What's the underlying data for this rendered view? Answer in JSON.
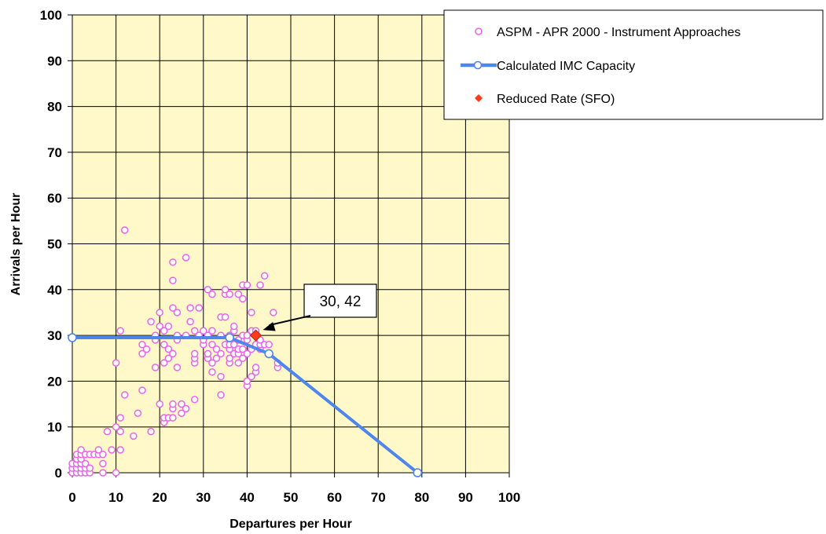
{
  "chart_data": {
    "type": "scatter",
    "xlabel": "Departures per Hour",
    "ylabel": "Arrivals per Hour",
    "xlim": [
      0,
      100
    ],
    "ylim": [
      0,
      100
    ],
    "x_ticks": [
      "0",
      "10",
      "20",
      "30",
      "40",
      "50",
      "60",
      "70",
      "80",
      "90",
      "100"
    ],
    "y_ticks": [
      "0",
      "10",
      "20",
      "30",
      "40",
      "50",
      "60",
      "70",
      "80",
      "90",
      "100"
    ],
    "grid": true,
    "plot_background": "#FFF8C8",
    "legend_position": "top-right",
    "series": [
      {
        "name": "ASPM - APR 2000 - Instrument Approaches",
        "kind": "scatter",
        "marker": "open-circle",
        "color": "#E666E6",
        "points": [
          [
            0,
            0
          ],
          [
            0,
            1
          ],
          [
            0,
            2
          ],
          [
            1,
            0
          ],
          [
            1,
            1
          ],
          [
            1,
            2
          ],
          [
            1,
            3
          ],
          [
            1,
            4
          ],
          [
            2,
            0
          ],
          [
            2,
            1
          ],
          [
            2,
            2
          ],
          [
            2,
            3
          ],
          [
            2,
            4
          ],
          [
            2,
            5
          ],
          [
            3,
            0
          ],
          [
            3,
            1
          ],
          [
            3,
            2
          ],
          [
            3,
            4
          ],
          [
            4,
            0
          ],
          [
            4,
            1
          ],
          [
            4,
            4
          ],
          [
            5,
            4
          ],
          [
            6,
            4
          ],
          [
            6,
            5
          ],
          [
            7,
            0
          ],
          [
            7,
            2
          ],
          [
            7,
            4
          ],
          [
            8,
            9
          ],
          [
            9,
            5
          ],
          [
            10,
            0
          ],
          [
            10,
            10
          ],
          [
            10,
            24
          ],
          [
            11,
            5
          ],
          [
            11,
            9
          ],
          [
            11,
            12
          ],
          [
            11,
            31
          ],
          [
            12,
            17
          ],
          [
            12,
            53
          ],
          [
            14,
            8
          ],
          [
            15,
            13
          ],
          [
            16,
            18
          ],
          [
            16,
            26
          ],
          [
            16,
            28
          ],
          [
            17,
            27
          ],
          [
            18,
            9
          ],
          [
            18,
            33
          ],
          [
            19,
            23
          ],
          [
            19,
            29
          ],
          [
            19,
            30
          ],
          [
            20,
            15
          ],
          [
            20,
            32
          ],
          [
            20,
            35
          ],
          [
            21,
            11
          ],
          [
            21,
            12
          ],
          [
            21,
            24
          ],
          [
            21,
            28
          ],
          [
            21,
            31
          ],
          [
            22,
            12
          ],
          [
            22,
            25
          ],
          [
            22,
            27
          ],
          [
            22,
            32
          ],
          [
            23,
            12
          ],
          [
            23,
            14
          ],
          [
            23,
            15
          ],
          [
            23,
            26
          ],
          [
            23,
            36
          ],
          [
            23,
            42
          ],
          [
            23,
            46
          ],
          [
            24,
            23
          ],
          [
            24,
            29
          ],
          [
            24,
            30
          ],
          [
            24,
            35
          ],
          [
            25,
            13
          ],
          [
            25,
            15
          ],
          [
            26,
            14
          ],
          [
            26,
            30
          ],
          [
            26,
            47
          ],
          [
            27,
            33
          ],
          [
            27,
            36
          ],
          [
            28,
            16
          ],
          [
            28,
            24
          ],
          [
            28,
            25
          ],
          [
            28,
            26
          ],
          [
            28,
            31
          ],
          [
            29,
            30
          ],
          [
            29,
            36
          ],
          [
            30,
            28
          ],
          [
            30,
            29
          ],
          [
            30,
            31
          ],
          [
            31,
            25
          ],
          [
            31,
            26
          ],
          [
            31,
            30
          ],
          [
            31,
            40
          ],
          [
            32,
            22
          ],
          [
            32,
            24
          ],
          [
            32,
            28
          ],
          [
            32,
            31
          ],
          [
            32,
            39
          ],
          [
            33,
            25
          ],
          [
            33,
            27
          ],
          [
            34,
            17
          ],
          [
            34,
            21
          ],
          [
            34,
            26
          ],
          [
            34,
            30
          ],
          [
            34,
            34
          ],
          [
            35,
            28
          ],
          [
            35,
            34
          ],
          [
            35,
            39
          ],
          [
            35,
            40
          ],
          [
            36,
            24
          ],
          [
            36,
            25
          ],
          [
            36,
            27
          ],
          [
            36,
            28
          ],
          [
            36,
            30
          ],
          [
            36,
            39
          ],
          [
            37,
            26
          ],
          [
            37,
            28
          ],
          [
            37,
            31
          ],
          [
            37,
            32
          ],
          [
            38,
            24
          ],
          [
            38,
            26
          ],
          [
            38,
            27
          ],
          [
            38,
            29
          ],
          [
            38,
            39
          ],
          [
            39,
            25
          ],
          [
            39,
            27
          ],
          [
            39,
            30
          ],
          [
            39,
            38
          ],
          [
            39,
            41
          ],
          [
            40,
            19
          ],
          [
            40,
            20
          ],
          [
            40,
            26
          ],
          [
            40,
            29
          ],
          [
            40,
            30
          ],
          [
            40,
            41
          ],
          [
            41,
            21
          ],
          [
            41,
            27
          ],
          [
            41,
            31
          ],
          [
            41,
            35
          ],
          [
            42,
            22
          ],
          [
            42,
            23
          ],
          [
            42,
            28
          ],
          [
            42,
            31
          ],
          [
            43,
            27
          ],
          [
            43,
            28
          ],
          [
            43,
            29
          ],
          [
            43,
            41
          ],
          [
            44,
            28
          ],
          [
            44,
            43
          ],
          [
            45,
            26
          ],
          [
            45,
            28
          ],
          [
            46,
            35
          ],
          [
            47,
            23
          ],
          [
            47,
            24
          ]
        ]
      },
      {
        "name": "Calculated IMC Capacity",
        "kind": "line",
        "color": "#4F86EC",
        "points": [
          [
            0,
            29.5
          ],
          [
            36,
            29.5
          ],
          [
            45,
            26
          ],
          [
            79,
            0
          ]
        ]
      },
      {
        "name": "Reduced Rate (SFO)",
        "kind": "point",
        "marker": "diamond",
        "color": "#FF3A1A",
        "points": [
          [
            42,
            30
          ]
        ]
      }
    ],
    "annotations": [
      {
        "text": "30, 42",
        "target": [
          42,
          30
        ]
      }
    ]
  }
}
